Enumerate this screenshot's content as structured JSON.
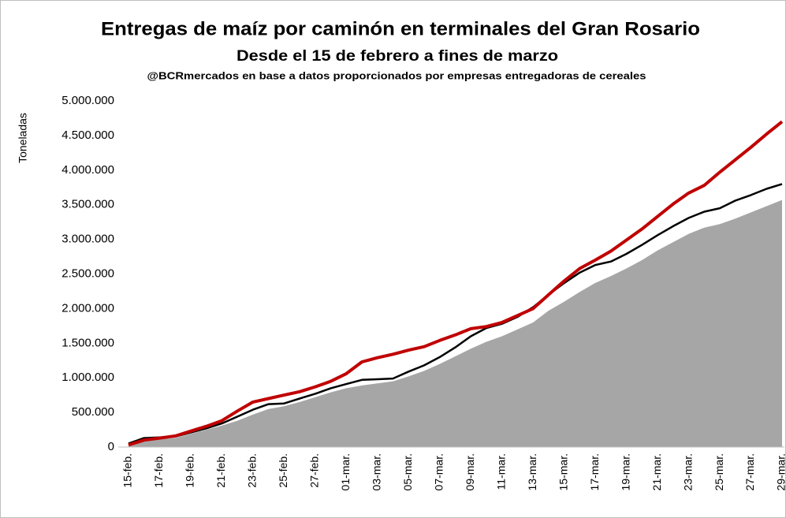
{
  "chart_data": {
    "type": "area-line",
    "title": "Entregas de maíz por caminón en terminales del Gran Rosario",
    "subtitle": "Desde el 15 de febrero a fines de marzo",
    "source": "@BCRmercados en base a datos proporcionados por empresas entregadoras de cereales",
    "y_label": "Toneladas",
    "categories": [
      "15-feb.",
      null,
      "17-feb.",
      null,
      "19-feb.",
      null,
      "21-feb.",
      null,
      "23-feb.",
      null,
      "25-feb.",
      null,
      "27-feb.",
      null,
      "01-mar.",
      null,
      "03-mar.",
      null,
      "05-mar.",
      null,
      "07-mar.",
      null,
      "09-mar.",
      null,
      "11-mar.",
      null,
      "13-mar.",
      null,
      "15-mar.",
      null,
      "17-mar.",
      null,
      "19-mar.",
      null,
      "21-mar.",
      null,
      "23-mar.",
      null,
      "25-mar.",
      null,
      "27-mar.",
      null,
      "29-mar."
    ],
    "series": [
      {
        "kind": "area",
        "color": "#a6a6a6",
        "values": [
          20000,
          80000,
          110000,
          130000,
          190000,
          250000,
          310000,
          380000,
          470000,
          550000,
          590000,
          650000,
          720000,
          790000,
          850000,
          890000,
          920000,
          950000,
          1020000,
          1100000,
          1200000,
          1310000,
          1420000,
          1520000,
          1600000,
          1700000,
          1800000,
          1970000,
          2100000,
          2240000,
          2370000,
          2470000,
          2580000,
          2700000,
          2840000,
          2960000,
          3080000,
          3170000,
          3220000,
          3300000,
          3390000,
          3480000,
          3570000
        ]
      },
      {
        "kind": "line",
        "color": "#000000",
        "values": [
          50000,
          130000,
          140000,
          150000,
          210000,
          270000,
          340000,
          440000,
          540000,
          620000,
          630000,
          700000,
          770000,
          850000,
          910000,
          970000,
          980000,
          990000,
          1090000,
          1180000,
          1300000,
          1440000,
          1600000,
          1720000,
          1780000,
          1880000,
          2020000,
          2200000,
          2370000,
          2520000,
          2630000,
          2680000,
          2790000,
          2920000,
          3060000,
          3190000,
          3310000,
          3400000,
          3450000,
          3560000,
          3640000,
          3730000,
          3800000
        ]
      },
      {
        "kind": "line",
        "color": "#c00000",
        "values": [
          30000,
          100000,
          130000,
          160000,
          230000,
          300000,
          380000,
          520000,
          650000,
          700000,
          750000,
          800000,
          870000,
          950000,
          1060000,
          1230000,
          1290000,
          1340000,
          1400000,
          1450000,
          1540000,
          1620000,
          1710000,
          1740000,
          1800000,
          1900000,
          2000000,
          2200000,
          2400000,
          2580000,
          2700000,
          2830000,
          2990000,
          3150000,
          3330000,
          3510000,
          3670000,
          3780000,
          3970000,
          4150000,
          4330000,
          4520000,
          4700000
        ]
      }
    ],
    "ylim": [
      0,
      5000000
    ],
    "yticks": [
      0,
      {
        "value": 500000,
        "label": "500.000"
      },
      {
        "value": 1000000,
        "label": "1.000.000"
      },
      {
        "value": 1500000,
        "label": "1.500.000"
      },
      {
        "value": 2000000,
        "label": "2.000.000"
      },
      {
        "value": 2500000,
        "label": "2.500.000"
      },
      {
        "value": 3000000,
        "label": "3.000.000"
      },
      {
        "value": 3500000,
        "label": "3.500.000"
      },
      {
        "value": 4000000,
        "label": "4.000.000"
      },
      {
        "value": 4500000,
        "label": "4.500.000"
      },
      {
        "value": 5000000,
        "label": "5.000.000"
      }
    ],
    "grid": false
  }
}
